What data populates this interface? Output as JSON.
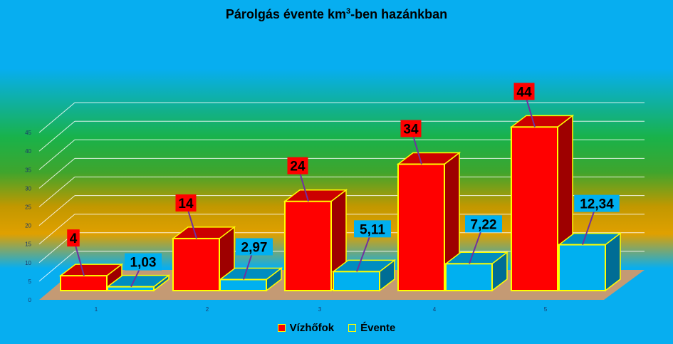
{
  "chart_data": {
    "type": "bar",
    "title": {
      "pre": "Párolgás évente km",
      "sup": "3",
      "post": "-ben hazánkban"
    },
    "categories": [
      "1",
      "2",
      "3",
      "4",
      "5"
    ],
    "series": [
      {
        "name": "Vízhőfok",
        "values": [
          4,
          14,
          24,
          34,
          44
        ],
        "labels": [
          "4",
          "14",
          "24",
          "34",
          "44"
        ],
        "color": "#ff0000"
      },
      {
        "name": "Évente",
        "values": [
          1.03,
          2.97,
          5.11,
          7.22,
          12.34
        ],
        "labels": [
          "1,03",
          "2,97",
          "5,11",
          "7,22",
          "12,34"
        ],
        "color": "#00b0f0"
      }
    ],
    "y_ticks": [
      "0",
      "5",
      "10",
      "15",
      "20",
      "25",
      "30",
      "35",
      "40",
      "45"
    ],
    "ylim": [
      0,
      45
    ],
    "grid": true,
    "legend_position": "bottom",
    "colors": {
      "background": "#07aef0",
      "outline": "#ffff00",
      "floor": "#c49a74",
      "label_line": "#7030a0",
      "gridline": "#ffffff"
    }
  }
}
